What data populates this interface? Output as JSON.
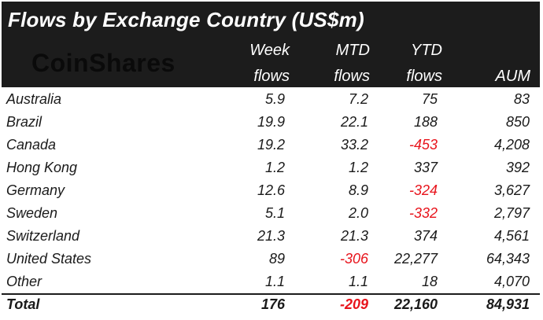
{
  "title": "Flows by Exchange Country (US$m)",
  "logo_text": "CoinShares",
  "columns": [
    {
      "line1": "Week",
      "line2": "flows"
    },
    {
      "line1": "MTD",
      "line2": "flows"
    },
    {
      "line1": "YTD",
      "line2": "flows"
    },
    {
      "line1": "",
      "line2": "AUM"
    }
  ],
  "rows": [
    {
      "country": "Australia",
      "week": "5.9",
      "mtd": "7.2",
      "ytd": "75",
      "aum": "83"
    },
    {
      "country": "Brazil",
      "week": "19.9",
      "mtd": "22.1",
      "ytd": "188",
      "aum": "850"
    },
    {
      "country": "Canada",
      "week": "19.2",
      "mtd": "33.2",
      "ytd": "-453",
      "aum": "4,208"
    },
    {
      "country": "Hong Kong",
      "week": "1.2",
      "mtd": "1.2",
      "ytd": "337",
      "aum": "392"
    },
    {
      "country": "Germany",
      "week": "12.6",
      "mtd": "8.9",
      "ytd": "-324",
      "aum": "3,627"
    },
    {
      "country": "Sweden",
      "week": "5.1",
      "mtd": "2.0",
      "ytd": "-332",
      "aum": "2,797"
    },
    {
      "country": "Switzerland",
      "week": "21.3",
      "mtd": "21.3",
      "ytd": "374",
      "aum": "4,561"
    },
    {
      "country": "United States",
      "week": "89",
      "mtd": "-306",
      "ytd": "22,277",
      "aum": "64,343"
    },
    {
      "country": "Other",
      "week": "1.1",
      "mtd": "1.1",
      "ytd": "18",
      "aum": "4,070"
    }
  ],
  "total": {
    "label": "Total",
    "week": "176",
    "mtd": "-209",
    "ytd": "22,160",
    "aum": "84,931"
  },
  "colors": {
    "header_bg": "#1c1c1c",
    "negative": "#e8141c",
    "text": "#1a1a1a"
  }
}
